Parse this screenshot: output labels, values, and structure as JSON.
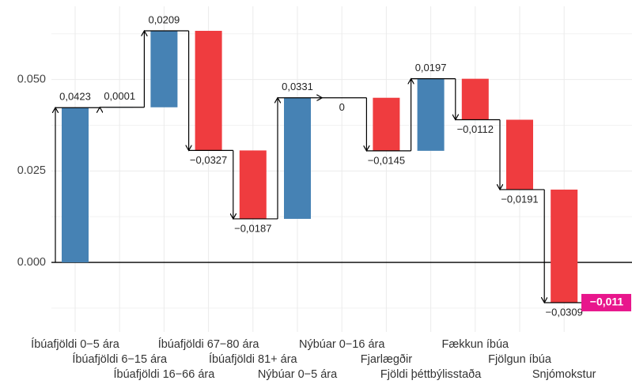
{
  "chart_data": {
    "type": "waterfall",
    "categories": [
      "Íbúafjöldi 0−5 ára",
      "Íbúafjöldi 6−15 ára",
      "Íbúafjöldi 16−66 ára",
      "Íbúafjöldi 67−80 ára",
      "Íbúafjöldi 81+ ára",
      "Nýbúar 0−5 ára",
      "Nýbúar 0−16 ára",
      "Fjarlægðir",
      "Fjöldi þéttbýlisstaða",
      "Fækkun íbúa",
      "Fjölgun íbúa",
      "Snjómokstur"
    ],
    "values": [
      0.0423,
      0.0001,
      0.0209,
      -0.0327,
      -0.0187,
      0.0331,
      0,
      -0.0145,
      0.0197,
      -0.0112,
      -0.0191,
      -0.0309
    ],
    "value_labels": [
      "0,0423",
      "0,0001",
      "0,0209",
      "−0,0327",
      "−0,0187",
      "0,0331",
      "0",
      "−0,0145",
      "0,0197",
      "−0,0112",
      "−0,0191",
      "−0,0309"
    ],
    "total": {
      "value": -0.011,
      "label": "−0,011"
    },
    "colors": {
      "positive": "#4682b4",
      "negative": "#ef3c3f",
      "total": "#e8168c"
    },
    "ylim": [
      -0.019,
      0.07
    ],
    "yticks": [
      {
        "value": 0,
        "label": "0.000"
      },
      {
        "value": 0.025,
        "label": "0.025"
      },
      {
        "value": 0.05,
        "label": "0.050"
      }
    ],
    "grid": true
  }
}
